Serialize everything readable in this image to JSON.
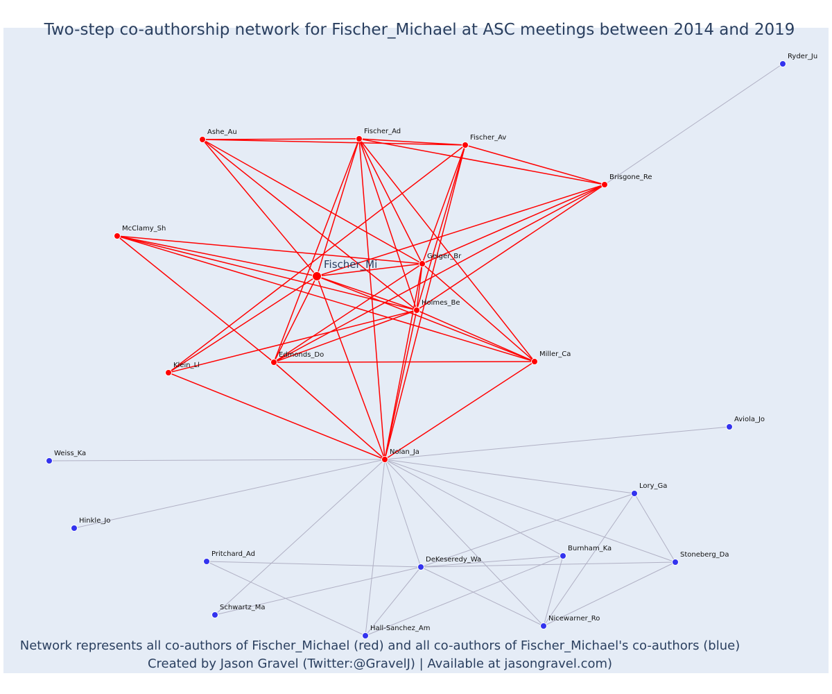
{
  "title": "Two-step co-authorship network for Fischer_Michael at ASC meetings between 2014 and 2019",
  "caption": {
    "line1": "Network represents all co-authors of Fischer_Michael (red) and all co-authors of Fischer_Michael's co-authors (blue)",
    "line2": "Created by Jason Gravel (Twitter:@GravelJ) | Available at jasongravel.com)"
  },
  "colors": {
    "plot_background": "#e5ecf6",
    "red_node": "#ff0000",
    "red_edge": "#ff0000",
    "blue_node": "#3333ee",
    "blue_edge": "#b0b0c4",
    "title_text": "#2a3f5f"
  },
  "nodes": [
    {
      "id": "Fischer_Mi",
      "label": "Fischer_Mi",
      "group": "focal"
    },
    {
      "id": "Ashe_Au",
      "label": "Ashe_Au",
      "group": "red"
    },
    {
      "id": "Fischer_Ad",
      "label": "Fischer_Ad",
      "group": "red"
    },
    {
      "id": "Fischer_Av",
      "label": "Fischer_Av",
      "group": "red"
    },
    {
      "id": "Brisgone_Re",
      "label": "Brisgone_Re",
      "group": "red"
    },
    {
      "id": "McClamy_Sh",
      "label": "McClamy_Sh",
      "group": "red"
    },
    {
      "id": "Geiger_Br",
      "label": "Geiger_Br",
      "group": "red"
    },
    {
      "id": "Holmes_Be",
      "label": "Holmes_Be",
      "group": "red"
    },
    {
      "id": "Klein_Ll",
      "label": "Klein_Ll",
      "group": "red"
    },
    {
      "id": "Edmonds_Do",
      "label": "Edmonds_Do",
      "group": "red"
    },
    {
      "id": "Miller_Ca",
      "label": "Miller_Ca",
      "group": "red"
    },
    {
      "id": "Nolan_Ja",
      "label": "Nolan_Ja",
      "group": "red"
    },
    {
      "id": "Ryder_Ju",
      "label": "Ryder_Ju",
      "group": "blue"
    },
    {
      "id": "Aviola_Jo",
      "label": "Aviola_Jo",
      "group": "blue"
    },
    {
      "id": "Weiss_Ka",
      "label": "Weiss_Ka",
      "group": "blue"
    },
    {
      "id": "Lory_Ga",
      "label": "Lory_Ga",
      "group": "blue"
    },
    {
      "id": "Hinkle_Jo",
      "label": "Hinkle_Jo",
      "group": "blue"
    },
    {
      "id": "Pritchard_Ad",
      "label": "Pritchard_Ad",
      "group": "blue"
    },
    {
      "id": "Burnham_Ka",
      "label": "Burnham_Ka",
      "group": "blue"
    },
    {
      "id": "Stoneberg_Da",
      "label": "Stoneberg_Da",
      "group": "blue"
    },
    {
      "id": "DeKeseredy_Wa",
      "label": "DeKeseredy_Wa",
      "group": "blue"
    },
    {
      "id": "Schwartz_Ma",
      "label": "Schwartz_Ma",
      "group": "blue"
    },
    {
      "id": "Nicewarner_Ro",
      "label": "Nicewarner_Ro",
      "group": "blue"
    },
    {
      "id": "Hall-Sanchez_Am",
      "label": "Hall-Sanchez_Am",
      "group": "blue"
    }
  ],
  "edges": [
    [
      "Ashe_Au",
      "Fischer_Ad",
      "red"
    ],
    [
      "Ashe_Au",
      "Fischer_Av",
      "red"
    ],
    [
      "Ashe_Au",
      "Geiger_Br",
      "red"
    ],
    [
      "Ashe_Au",
      "Holmes_Be",
      "red"
    ],
    [
      "Ashe_Au",
      "Fischer_Mi",
      "red"
    ],
    [
      "Fischer_Ad",
      "Fischer_Av",
      "red"
    ],
    [
      "Fischer_Ad",
      "Brisgone_Re",
      "red"
    ],
    [
      "Fischer_Ad",
      "Fischer_Mi",
      "red"
    ],
    [
      "Fischer_Ad",
      "Geiger_Br",
      "red"
    ],
    [
      "Fischer_Ad",
      "Holmes_Be",
      "red"
    ],
    [
      "Fischer_Ad",
      "Nolan_Ja",
      "red"
    ],
    [
      "Fischer_Ad",
      "Edmonds_Do",
      "red"
    ],
    [
      "Fischer_Ad",
      "Miller_Ca",
      "red"
    ],
    [
      "Fischer_Av",
      "Brisgone_Re",
      "red"
    ],
    [
      "Fischer_Av",
      "Geiger_Br",
      "red"
    ],
    [
      "Fischer_Av",
      "Holmes_Be",
      "red"
    ],
    [
      "Fischer_Av",
      "Klein_Ll",
      "red"
    ],
    [
      "Fischer_Av",
      "Nolan_Ja",
      "red"
    ],
    [
      "Brisgone_Re",
      "Fischer_Mi",
      "red"
    ],
    [
      "Brisgone_Re",
      "Geiger_Br",
      "red"
    ],
    [
      "Brisgone_Re",
      "Holmes_Be",
      "red"
    ],
    [
      "Brisgone_Re",
      "Edmonds_Do",
      "red"
    ],
    [
      "McClamy_Sh",
      "Fischer_Mi",
      "red"
    ],
    [
      "McClamy_Sh",
      "Geiger_Br",
      "red"
    ],
    [
      "McClamy_Sh",
      "Holmes_Be",
      "red"
    ],
    [
      "McClamy_Sh",
      "Miller_Ca",
      "red"
    ],
    [
      "McClamy_Sh",
      "Edmonds_Do",
      "red"
    ],
    [
      "Fischer_Mi",
      "Geiger_Br",
      "red"
    ],
    [
      "Fischer_Mi",
      "Holmes_Be",
      "red"
    ],
    [
      "Fischer_Mi",
      "Klein_Ll",
      "red"
    ],
    [
      "Fischer_Mi",
      "Edmonds_Do",
      "red"
    ],
    [
      "Fischer_Mi",
      "Nolan_Ja",
      "red"
    ],
    [
      "Fischer_Mi",
      "Miller_Ca",
      "red"
    ],
    [
      "Geiger_Br",
      "Holmes_Be",
      "red"
    ],
    [
      "Geiger_Br",
      "Edmonds_Do",
      "red"
    ],
    [
      "Geiger_Br",
      "Nolan_Ja",
      "red"
    ],
    [
      "Geiger_Br",
      "Miller_Ca",
      "red"
    ],
    [
      "Holmes_Be",
      "Klein_Ll",
      "red"
    ],
    [
      "Holmes_Be",
      "Edmonds_Do",
      "red"
    ],
    [
      "Holmes_Be",
      "Miller_Ca",
      "red"
    ],
    [
      "Holmes_Be",
      "Nolan_Ja",
      "red"
    ],
    [
      "Edmonds_Do",
      "Miller_Ca",
      "red"
    ],
    [
      "Edmonds_Do",
      "Nolan_Ja",
      "red"
    ],
    [
      "Klein_Ll",
      "Nolan_Ja",
      "red"
    ],
    [
      "Miller_Ca",
      "Nolan_Ja",
      "red"
    ],
    [
      "Ryder_Ju",
      "Brisgone_Re",
      "blue"
    ],
    [
      "Nolan_Ja",
      "Aviola_Jo",
      "blue"
    ],
    [
      "Nolan_Ja",
      "Weiss_Ka",
      "blue"
    ],
    [
      "Nolan_Ja",
      "Lory_Ga",
      "blue"
    ],
    [
      "Nolan_Ja",
      "Hinkle_Jo",
      "blue"
    ],
    [
      "Nolan_Ja",
      "Burnham_Ka",
      "blue"
    ],
    [
      "Nolan_Ja",
      "Stoneberg_Da",
      "blue"
    ],
    [
      "Nolan_Ja",
      "DeKeseredy_Wa",
      "blue"
    ],
    [
      "Nolan_Ja",
      "Schwartz_Ma",
      "blue"
    ],
    [
      "Nolan_Ja",
      "Nicewarner_Ro",
      "blue"
    ],
    [
      "Nolan_Ja",
      "Hall-Sanchez_Am",
      "blue"
    ],
    [
      "Lory_Ga",
      "DeKeseredy_Wa",
      "blue"
    ],
    [
      "Lory_Ga",
      "Stoneberg_Da",
      "blue"
    ],
    [
      "Lory_Ga",
      "Nicewarner_Ro",
      "blue"
    ],
    [
      "Pritchard_Ad",
      "DeKeseredy_Wa",
      "blue"
    ],
    [
      "Pritchard_Ad",
      "Hall-Sanchez_Am",
      "blue"
    ],
    [
      "DeKeseredy_Wa",
      "Burnham_Ka",
      "blue"
    ],
    [
      "DeKeseredy_Wa",
      "Stoneberg_Da",
      "blue"
    ],
    [
      "DeKeseredy_Wa",
      "Schwartz_Ma",
      "blue"
    ],
    [
      "DeKeseredy_Wa",
      "Nicewarner_Ro",
      "blue"
    ],
    [
      "DeKeseredy_Wa",
      "Hall-Sanchez_Am",
      "blue"
    ],
    [
      "Burnham_Ka",
      "Nicewarner_Ro",
      "blue"
    ],
    [
      "Burnham_Ka",
      "Hall-Sanchez_Am",
      "blue"
    ],
    [
      "Stoneberg_Da",
      "Nicewarner_Ro",
      "blue"
    ]
  ]
}
